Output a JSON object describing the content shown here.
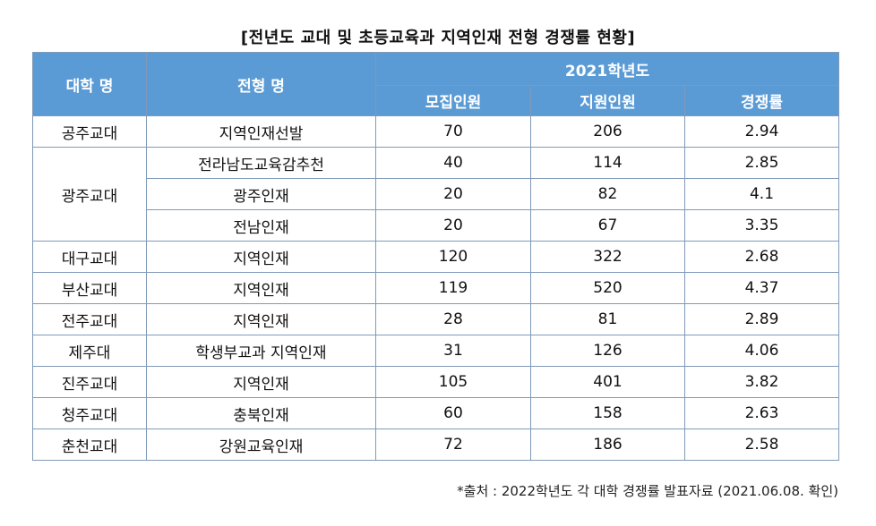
{
  "title": "[전년도 교대 및 초등교육과 지역인재 전형 경쟁률 현황]",
  "headers": {
    "university": "대학 명",
    "admission_type": "전형 명",
    "year_group": "2021학년도",
    "recruit": "모집인원",
    "applicants": "지원인원",
    "ratio": "경쟁률"
  },
  "rows": [
    {
      "univ": "공주교대",
      "type": "지역인재선발",
      "recruit": "70",
      "applicants": "206",
      "ratio": "2.94"
    },
    {
      "univ": "광주교대",
      "type": "전라남도교육감추천",
      "recruit": "40",
      "applicants": "114",
      "ratio": "2.85"
    },
    {
      "univ": "",
      "type": "광주인재",
      "recruit": "20",
      "applicants": "82",
      "ratio": "4.1"
    },
    {
      "univ": "",
      "type": "전남인재",
      "recruit": "20",
      "applicants": "67",
      "ratio": "3.35"
    },
    {
      "univ": "대구교대",
      "type": "지역인재",
      "recruit": "120",
      "applicants": "322",
      "ratio": "2.68"
    },
    {
      "univ": "부산교대",
      "type": "지역인재",
      "recruit": "119",
      "applicants": "520",
      "ratio": "4.37"
    },
    {
      "univ": "전주교대",
      "type": "지역인재",
      "recruit": "28",
      "applicants": "81",
      "ratio": "2.89"
    },
    {
      "univ": "제주대",
      "type": "학생부교과 지역인재",
      "recruit": "31",
      "applicants": "126",
      "ratio": "4.06"
    },
    {
      "univ": "진주교대",
      "type": "지역인재",
      "recruit": "105",
      "applicants": "401",
      "ratio": "3.82"
    },
    {
      "univ": "청주교대",
      "type": "충북인재",
      "recruit": "60",
      "applicants": "158",
      "ratio": "2.63"
    },
    {
      "univ": "춘천교대",
      "type": "강원교육인재",
      "recruit": "72",
      "applicants": "186",
      "ratio": "2.58"
    }
  ],
  "source_note": "*출처 : 2022학년도 각 대학 경쟁률 발표자료 (2021.06.08. 확인)",
  "colors": {
    "header_bg": "#5b9bd5",
    "header_text": "#ffffff",
    "border": "#7f9ab8"
  }
}
